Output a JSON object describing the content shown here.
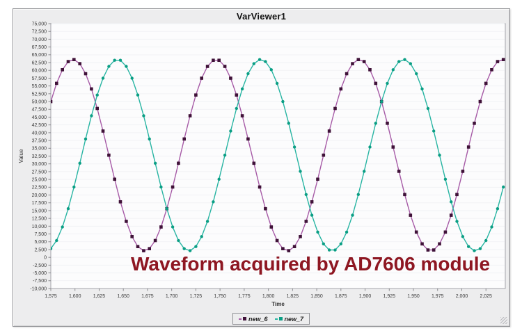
{
  "window": {
    "title": "VarViewer1"
  },
  "annotation": {
    "text": "Waveform acquired by AD7606 module",
    "color": "#8e1722"
  },
  "legend": {
    "items": [
      {
        "label": "new_6"
      },
      {
        "label": "new_7"
      }
    ]
  },
  "colors": {
    "window_bg": "#ededee",
    "plot_bg": "#fcfcfd",
    "plot_border": "#a4a4aa",
    "grid": "#f1f2f5",
    "tick": "#8a8a8e",
    "tick_label": "#3a3a3a",
    "axis_label": "#333333"
  },
  "chart_data": {
    "type": "line",
    "title": "VarViewer1",
    "xlabel": "Time",
    "ylabel": "Value",
    "xlim": [
      1575,
      2045
    ],
    "ylim": [
      -10000,
      75000
    ],
    "x_ticks": {
      "start": 1575,
      "end": 2025,
      "step": 25
    },
    "y_ticks": {
      "start": -10000,
      "end": 75000,
      "step": 2500
    },
    "grid": "horizontal-faint",
    "legend_position": "bottom-center",
    "sample_interval": 6,
    "series": [
      {
        "name": "new_6",
        "marker": "square",
        "line_color": "#a65aa6",
        "marker_color": "#3f1238",
        "model": {
          "shape": "sine",
          "midline": 32800,
          "amplitude": 30700,
          "period": 148,
          "peak_t": 1598
        },
        "peaks_t": [
          1598,
          1746,
          1894,
          2042
        ],
        "peak_value": 63500,
        "trough_value": 2100
      },
      {
        "name": "new_7",
        "marker": "circle",
        "line_color": "#27b4a2",
        "marker_color": "#0a9e84",
        "model": {
          "shape": "sine",
          "midline": 32800,
          "amplitude": 30700,
          "period": 148,
          "peak_t": 1644
        },
        "peaks_t": [
          1644,
          1792,
          1940
        ],
        "peak_value": 63500,
        "trough_value": 2100
      }
    ]
  }
}
